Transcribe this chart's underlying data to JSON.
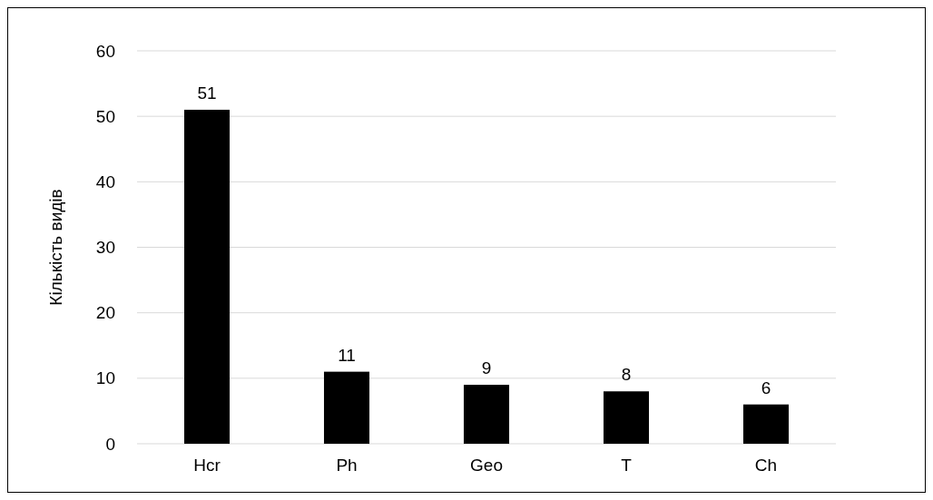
{
  "chart_data": {
    "type": "bar",
    "ylabel": "Кількість видів",
    "categories": [
      "Hcr",
      "Ph",
      "Geo",
      "T",
      "Ch"
    ],
    "values": [
      51,
      11,
      9,
      8,
      6
    ],
    "color": "#000000",
    "ylim": [
      0,
      60
    ],
    "yticks": [
      0,
      10,
      20,
      30,
      40,
      50,
      60
    ],
    "grid": "y",
    "data_labels": true
  }
}
